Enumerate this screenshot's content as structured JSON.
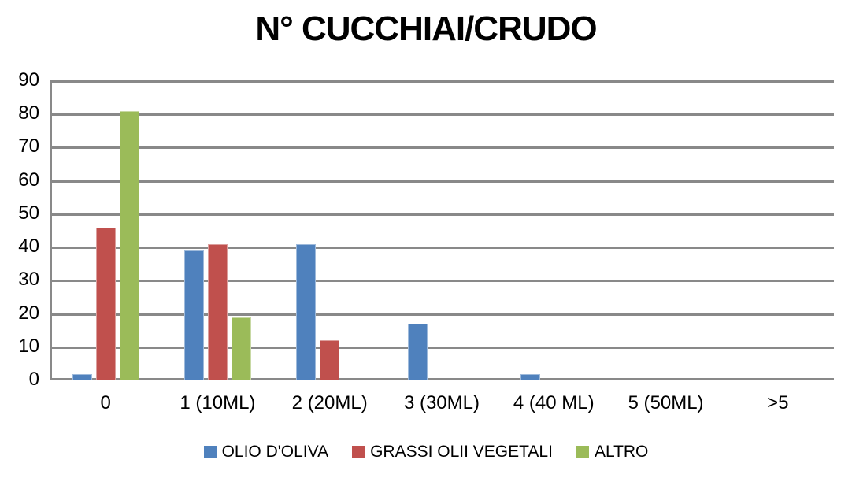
{
  "chart_data": {
    "type": "bar",
    "title": "N° CUCCHIAI/CRUDO",
    "categories": [
      "0",
      "1 (10ML)",
      "2 (20ML)",
      "3 (30ML)",
      "4 (40 ML)",
      "5 (50ML)",
      ">5"
    ],
    "series": [
      {
        "name": "OLIO D'OLIVA",
        "color": "#4F81BD",
        "values": [
          2,
          39,
          41,
          17,
          2,
          0,
          0
        ]
      },
      {
        "name": "GRASSI OLII VEGETALI",
        "color": "#C0504D",
        "values": [
          46,
          41,
          12,
          0,
          0,
          0,
          0
        ]
      },
      {
        "name": "ALTRO",
        "color": "#9BBB59",
        "values": [
          81,
          19,
          0,
          0,
          0,
          0,
          0
        ]
      }
    ],
    "xlabel": "",
    "ylabel": "",
    "ylim": [
      0,
      90
    ],
    "ytick_interval": 10,
    "yticks": [
      "0",
      "10",
      "20",
      "30",
      "40",
      "50",
      "60",
      "70",
      "80",
      "90"
    ],
    "grid": true,
    "legend_position": "bottom",
    "gridline_color": "#898989",
    "axis_color": "#898989",
    "background_color": "#FFFFFF",
    "text_color": "#000000"
  }
}
